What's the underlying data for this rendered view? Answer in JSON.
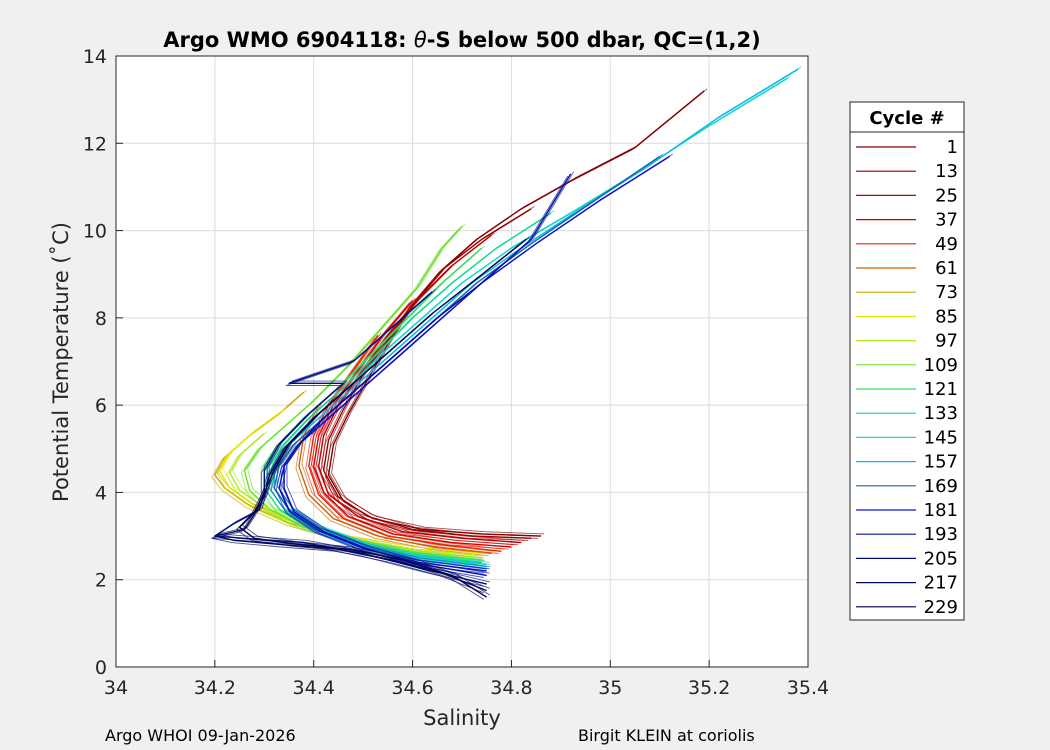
{
  "chart_data": {
    "type": "line",
    "title_prefix": "Argo WMO 6904118: ",
    "title_theta": "θ",
    "title_suffix": "-S below 500 dbar,  QC=(1,2)",
    "xlabel": "Salinity",
    "ylabel": "Potential Temperature (˚C)",
    "xlim": [
      34,
      35.4
    ],
    "ylim": [
      0,
      14
    ],
    "xticks": [
      34,
      34.2,
      34.4,
      34.6,
      34.8,
      35,
      35.2,
      35.4
    ],
    "xtick_labels": [
      "34",
      "34.2",
      "34.4",
      "34.6",
      "34.8",
      "35",
      "35.2",
      "35.4"
    ],
    "yticks": [
      0,
      2,
      4,
      6,
      8,
      10,
      12,
      14
    ],
    "ytick_labels": [
      "0",
      "2",
      "4",
      "6",
      "8",
      "10",
      "12",
      "14"
    ],
    "grid": true,
    "legend_title": "Cycle #",
    "legend_position": "right",
    "series": [
      {
        "name": "1",
        "color": "#800000",
        "points": [
          [
            34.86,
            3.0
          ],
          [
            34.74,
            3.05
          ],
          [
            34.62,
            3.15
          ],
          [
            34.52,
            3.4
          ],
          [
            34.46,
            3.8
          ],
          [
            34.43,
            4.4
          ],
          [
            34.44,
            5.1
          ],
          [
            34.47,
            5.8
          ],
          [
            34.51,
            6.6
          ],
          [
            34.55,
            7.4
          ],
          [
            34.6,
            8.3
          ],
          [
            34.66,
            9.1
          ],
          [
            34.73,
            9.8
          ],
          [
            34.82,
            10.5
          ],
          [
            34.93,
            11.2
          ],
          [
            35.05,
            11.9
          ],
          [
            35.19,
            13.2
          ]
        ]
      },
      {
        "name": "13",
        "color": "#9a0000",
        "points": [
          [
            34.84,
            2.95
          ],
          [
            34.72,
            3.0
          ],
          [
            34.6,
            3.15
          ],
          [
            34.51,
            3.45
          ],
          [
            34.45,
            3.9
          ],
          [
            34.42,
            4.5
          ],
          [
            34.43,
            5.2
          ],
          [
            34.46,
            5.9
          ],
          [
            34.5,
            6.7
          ],
          [
            34.55,
            7.5
          ],
          [
            34.6,
            8.3
          ],
          [
            34.66,
            9.1
          ],
          [
            34.74,
            9.8
          ],
          [
            34.84,
            10.5
          ]
        ]
      },
      {
        "name": "25",
        "color": "#b40000",
        "points": [
          [
            34.82,
            2.85
          ],
          [
            34.7,
            2.95
          ],
          [
            34.58,
            3.1
          ],
          [
            34.49,
            3.45
          ],
          [
            34.43,
            3.95
          ],
          [
            34.41,
            4.6
          ],
          [
            34.42,
            5.3
          ],
          [
            34.45,
            6.0
          ],
          [
            34.5,
            6.8
          ],
          [
            34.55,
            7.6
          ],
          [
            34.61,
            8.4
          ],
          [
            34.68,
            9.2
          ],
          [
            34.76,
            9.9
          ]
        ]
      },
      {
        "name": "37",
        "color": "#d00000",
        "points": [
          [
            34.8,
            2.75
          ],
          [
            34.68,
            2.85
          ],
          [
            34.56,
            3.05
          ],
          [
            34.47,
            3.45
          ],
          [
            34.42,
            4.0
          ],
          [
            34.4,
            4.6
          ],
          [
            34.41,
            5.3
          ],
          [
            34.44,
            6.0
          ],
          [
            34.49,
            6.8
          ],
          [
            34.54,
            7.6
          ],
          [
            34.6,
            8.4
          ]
        ]
      },
      {
        "name": "49",
        "color": "#e82000",
        "points": [
          [
            34.78,
            2.65
          ],
          [
            34.66,
            2.8
          ],
          [
            34.55,
            3.0
          ],
          [
            34.46,
            3.4
          ],
          [
            34.41,
            3.95
          ],
          [
            34.39,
            4.6
          ],
          [
            34.4,
            5.3
          ],
          [
            34.43,
            6.0
          ],
          [
            34.48,
            6.8
          ],
          [
            34.53,
            7.6
          ]
        ]
      },
      {
        "name": "61",
        "color": "#d06000",
        "points": [
          [
            34.76,
            2.6
          ],
          [
            34.64,
            2.75
          ],
          [
            34.53,
            3.0
          ],
          [
            34.44,
            3.4
          ],
          [
            34.39,
            3.95
          ],
          [
            34.37,
            4.6
          ],
          [
            34.38,
            5.3
          ],
          [
            34.41,
            6.0
          ]
        ]
      },
      {
        "name": "73",
        "color": "#c8a800",
        "points": [
          [
            34.74,
            2.55
          ],
          [
            34.6,
            2.7
          ],
          [
            34.46,
            2.95
          ],
          [
            34.35,
            3.3
          ],
          [
            34.27,
            3.7
          ],
          [
            34.22,
            4.1
          ],
          [
            34.2,
            4.4
          ],
          [
            34.22,
            4.8
          ],
          [
            34.27,
            5.3
          ],
          [
            34.33,
            5.8
          ],
          [
            34.38,
            6.3
          ]
        ]
      },
      {
        "name": "85",
        "color": "#e8e800",
        "points": [
          [
            34.74,
            2.55
          ],
          [
            34.6,
            2.7
          ],
          [
            34.47,
            2.95
          ],
          [
            34.36,
            3.3
          ],
          [
            34.28,
            3.7
          ],
          [
            34.23,
            4.1
          ],
          [
            34.21,
            4.5
          ],
          [
            34.23,
            4.9
          ],
          [
            34.28,
            5.4
          ],
          [
            34.34,
            5.9
          ]
        ]
      },
      {
        "name": "97",
        "color": "#b0e820",
        "points": [
          [
            34.74,
            2.5
          ],
          [
            34.6,
            2.65
          ],
          [
            34.48,
            2.9
          ],
          [
            34.37,
            3.25
          ],
          [
            34.3,
            3.65
          ],
          [
            34.25,
            4.05
          ],
          [
            34.23,
            4.45
          ],
          [
            34.25,
            4.85
          ],
          [
            34.3,
            5.35
          ]
        ]
      },
      {
        "name": "109",
        "color": "#70e030",
        "points": [
          [
            34.74,
            2.45
          ],
          [
            34.6,
            2.62
          ],
          [
            34.48,
            2.88
          ],
          [
            34.38,
            3.22
          ],
          [
            34.31,
            3.62
          ],
          [
            34.27,
            4.05
          ],
          [
            34.26,
            4.5
          ],
          [
            34.29,
            5.0
          ],
          [
            34.34,
            5.5
          ],
          [
            34.4,
            6.1
          ],
          [
            34.47,
            6.9
          ],
          [
            34.54,
            7.8
          ],
          [
            34.61,
            8.7
          ],
          [
            34.66,
            9.6
          ],
          [
            34.7,
            10.1
          ]
        ]
      },
      {
        "name": "121",
        "color": "#30e060",
        "points": [
          [
            34.74,
            2.4
          ],
          [
            34.6,
            2.58
          ],
          [
            34.49,
            2.85
          ],
          [
            34.39,
            3.2
          ],
          [
            34.33,
            3.62
          ],
          [
            34.3,
            4.1
          ],
          [
            34.3,
            4.6
          ],
          [
            34.33,
            5.1
          ],
          [
            34.38,
            5.7
          ],
          [
            34.45,
            6.4
          ],
          [
            34.52,
            7.2
          ],
          [
            34.59,
            8.0
          ],
          [
            34.66,
            8.8
          ],
          [
            34.74,
            9.6
          ]
        ]
      },
      {
        "name": "133",
        "color": "#10d890",
        "points": [
          [
            34.74,
            2.38
          ],
          [
            34.6,
            2.55
          ],
          [
            34.49,
            2.82
          ],
          [
            34.4,
            3.18
          ],
          [
            34.34,
            3.62
          ],
          [
            34.31,
            4.1
          ],
          [
            34.31,
            4.6
          ],
          [
            34.34,
            5.1
          ],
          [
            34.39,
            5.7
          ],
          [
            34.46,
            6.4
          ],
          [
            34.53,
            7.2
          ],
          [
            34.6,
            8.0
          ],
          [
            34.68,
            8.8
          ],
          [
            34.77,
            9.6
          ],
          [
            34.88,
            10.4
          ]
        ]
      },
      {
        "name": "145",
        "color": "#10d8c8",
        "points": [
          [
            34.75,
            2.35
          ],
          [
            34.61,
            2.52
          ],
          [
            34.5,
            2.8
          ],
          [
            34.41,
            3.18
          ],
          [
            34.35,
            3.62
          ],
          [
            34.32,
            4.1
          ],
          [
            34.32,
            4.6
          ],
          [
            34.35,
            5.1
          ],
          [
            34.4,
            5.7
          ],
          [
            34.47,
            6.4
          ],
          [
            34.54,
            7.2
          ],
          [
            34.62,
            8.0
          ],
          [
            34.7,
            8.8
          ],
          [
            34.8,
            9.6
          ],
          [
            34.92,
            10.4
          ],
          [
            35.05,
            11.3
          ],
          [
            35.2,
            12.4
          ],
          [
            35.36,
            13.5
          ]
        ]
      },
      {
        "name": "157",
        "color": "#10b8e8",
        "points": [
          [
            34.75,
            2.3
          ],
          [
            34.61,
            2.5
          ],
          [
            34.5,
            2.78
          ],
          [
            34.41,
            3.16
          ],
          [
            34.35,
            3.6
          ],
          [
            34.32,
            4.1
          ],
          [
            34.32,
            4.6
          ],
          [
            34.35,
            5.1
          ],
          [
            34.41,
            5.7
          ],
          [
            34.48,
            6.4
          ],
          [
            34.56,
            7.2
          ],
          [
            34.64,
            8.0
          ],
          [
            34.72,
            8.8
          ],
          [
            34.82,
            9.6
          ],
          [
            34.94,
            10.5
          ],
          [
            35.08,
            11.5
          ],
          [
            35.22,
            12.6
          ],
          [
            35.38,
            13.7
          ]
        ]
      },
      {
        "name": "169",
        "color": "#1068a8",
        "points": [
          [
            34.75,
            2.25
          ],
          [
            34.61,
            2.45
          ],
          [
            34.5,
            2.75
          ],
          [
            34.41,
            3.14
          ],
          [
            34.35,
            3.6
          ],
          [
            34.32,
            4.1
          ],
          [
            34.33,
            4.6
          ],
          [
            34.36,
            5.1
          ],
          [
            34.42,
            5.7
          ],
          [
            34.49,
            6.4
          ],
          [
            34.57,
            7.2
          ],
          [
            34.65,
            8.0
          ],
          [
            34.73,
            8.8
          ],
          [
            34.84,
            9.7
          ],
          [
            34.97,
            10.7
          ],
          [
            35.1,
            11.7
          ]
        ]
      },
      {
        "name": "181",
        "color": "#1010d0",
        "points": [
          [
            34.75,
            2.2
          ],
          [
            34.61,
            2.4
          ],
          [
            34.5,
            2.72
          ],
          [
            34.41,
            3.12
          ],
          [
            34.35,
            3.58
          ],
          [
            34.33,
            4.1
          ],
          [
            34.34,
            4.6
          ],
          [
            34.37,
            5.1
          ],
          [
            34.43,
            5.7
          ],
          [
            34.5,
            6.4
          ],
          [
            34.58,
            7.2
          ],
          [
            34.66,
            8.0
          ],
          [
            34.74,
            8.8
          ],
          [
            34.85,
            9.7
          ],
          [
            34.98,
            10.7
          ],
          [
            35.12,
            11.7
          ]
        ]
      },
      {
        "name": "193",
        "color": "#0010a0",
        "points": [
          [
            34.75,
            2.1
          ],
          [
            34.62,
            2.35
          ],
          [
            34.51,
            2.7
          ],
          [
            34.42,
            3.1
          ],
          [
            34.36,
            3.56
          ],
          [
            34.34,
            4.1
          ],
          [
            34.34,
            4.6
          ],
          [
            34.37,
            5.1
          ],
          [
            34.42,
            5.7
          ],
          [
            34.49,
            6.4
          ],
          [
            34.57,
            7.2
          ],
          [
            34.65,
            8.0
          ],
          [
            34.74,
            8.8
          ],
          [
            34.84,
            9.8
          ],
          [
            34.92,
            11.3
          ]
        ]
      },
      {
        "name": "205",
        "color": "#001080",
        "points": [
          [
            34.75,
            1.9
          ],
          [
            34.62,
            2.25
          ],
          [
            34.5,
            2.6
          ],
          [
            34.38,
            2.85
          ],
          [
            34.26,
            2.95
          ],
          [
            34.2,
            3.0
          ],
          [
            34.24,
            3.3
          ],
          [
            34.29,
            3.6
          ],
          [
            34.3,
            4.0
          ],
          [
            34.3,
            4.5
          ],
          [
            34.33,
            5.1
          ],
          [
            34.39,
            5.8
          ],
          [
            34.46,
            6.5
          ],
          [
            34.35,
            6.5
          ],
          [
            34.48,
            7.0
          ],
          [
            34.56,
            7.8
          ],
          [
            34.64,
            8.6
          ]
        ]
      },
      {
        "name": "217",
        "color": "#000860",
        "points": [
          [
            34.75,
            1.75
          ],
          [
            34.66,
            2.15
          ],
          [
            34.56,
            2.45
          ],
          [
            34.45,
            2.7
          ],
          [
            34.34,
            2.8
          ],
          [
            34.24,
            2.9
          ],
          [
            34.2,
            3.0
          ],
          [
            34.26,
            3.15
          ],
          [
            34.28,
            3.5
          ],
          [
            34.3,
            3.9
          ],
          [
            34.31,
            4.4
          ],
          [
            34.34,
            5.0
          ],
          [
            34.4,
            5.7
          ],
          [
            34.47,
            6.4
          ]
        ]
      },
      {
        "name": "229",
        "color": "#000050",
        "points": [
          [
            34.75,
            1.6
          ],
          [
            34.68,
            2.1
          ],
          [
            34.58,
            2.45
          ],
          [
            34.47,
            2.7
          ],
          [
            34.36,
            2.82
          ],
          [
            34.28,
            2.95
          ],
          [
            34.25,
            3.2
          ],
          [
            34.28,
            3.55
          ],
          [
            34.3,
            4.0
          ],
          [
            34.32,
            4.5
          ],
          [
            34.35,
            5.1
          ],
          [
            34.41,
            5.8
          ],
          [
            34.48,
            6.5
          ],
          [
            34.56,
            7.3
          ],
          [
            34.64,
            8.1
          ],
          [
            34.73,
            8.9
          ],
          [
            34.83,
            9.8
          ]
        ]
      }
    ]
  },
  "footer": {
    "left": "Argo WHOI 09-Jan-2026",
    "right": "Birgit KLEIN at coriolis"
  }
}
